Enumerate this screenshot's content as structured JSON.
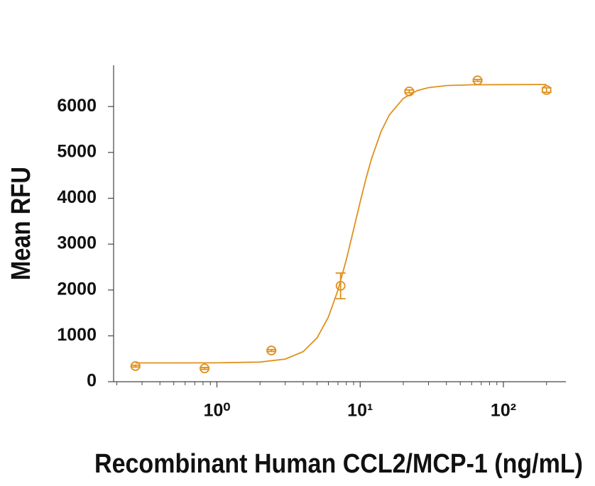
{
  "chart_data": {
    "type": "scatter",
    "x_label": "Recombinant Human CCL2/MCP-1 (ng/mL)",
    "y_label": "Mean RFU",
    "x_scale": "log",
    "xlim": [
      0.19,
      273
    ],
    "xticks": [
      {
        "value": 1,
        "label": "10⁰"
      },
      {
        "value": 10,
        "label": "10¹"
      },
      {
        "value": 100,
        "label": "10²"
      }
    ],
    "xminorticks": [
      0.2,
      0.3,
      0.4,
      0.5,
      0.6,
      0.7,
      0.8,
      0.9,
      2,
      3,
      4,
      5,
      6,
      7,
      8,
      9,
      20,
      30,
      40,
      50,
      60,
      70,
      80,
      90,
      200
    ],
    "ylim": [
      0,
      6900
    ],
    "yticks": [
      0,
      1000,
      2000,
      3000,
      4000,
      5000,
      6000
    ],
    "color": "#e0901e",
    "series": [
      {
        "x": [
          0.27,
          0.82,
          2.4,
          7.3,
          22,
          66,
          200
        ],
        "values": [
          340,
          290,
          680,
          2090,
          6330,
          6570,
          6360
        ],
        "errors": [
          20,
          20,
          20,
          280,
          30,
          20,
          50
        ]
      }
    ],
    "curve": {
      "x": [
        0.27,
        0.5,
        1,
        2,
        3,
        4,
        5,
        6,
        7,
        8,
        9,
        10,
        11,
        12,
        14,
        16,
        20,
        25,
        30,
        40,
        60,
        100,
        200
      ],
      "values": [
        410,
        410,
        411,
        428,
        494,
        656,
        954,
        1410,
        1997,
        2657,
        3319,
        3922,
        4437,
        4859,
        5455,
        5818,
        6177,
        6347,
        6413,
        6457,
        6474,
        6478,
        6480
      ]
    }
  }
}
